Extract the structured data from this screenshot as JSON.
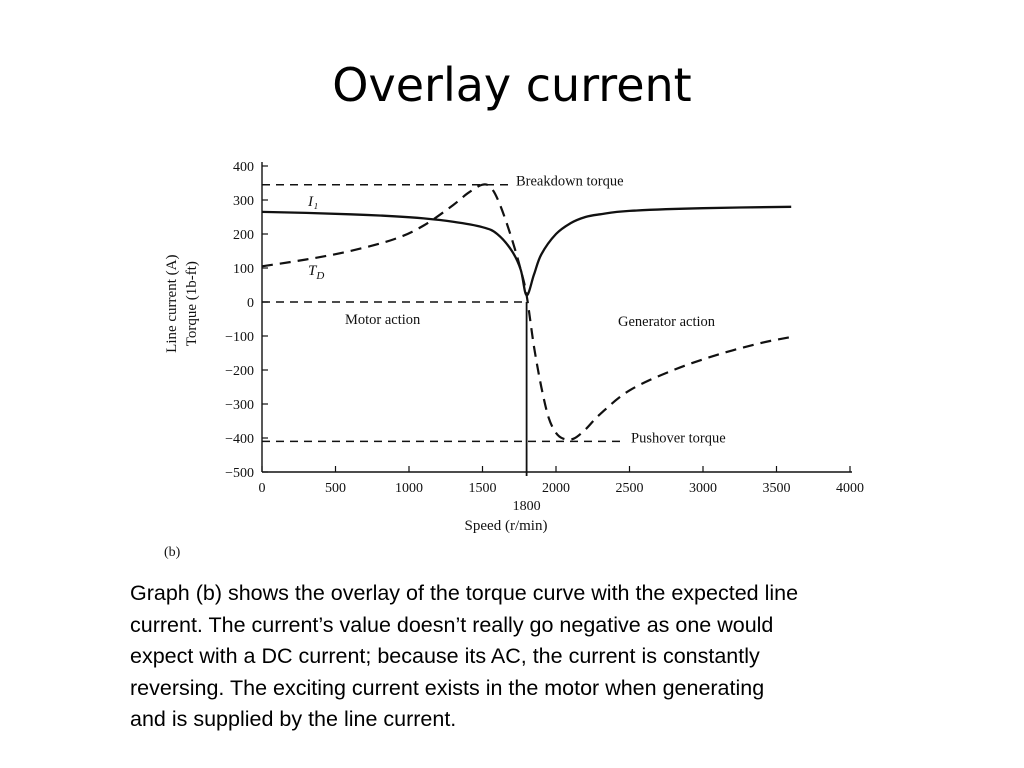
{
  "slide": {
    "title": "Overlay current",
    "caption_lines": [
      "Graph (b) shows the overlay of the torque curve with the expected line",
      "current.  The current’s value doesn’t really go negative as one would",
      "expect with a DC current; because its AC, the current is constantly",
      "reversing.  The exciting current exists in the motor when generating",
      "and is supplied by the line current."
    ]
  },
  "chart_data": {
    "type": "line",
    "panel_label": "(b)",
    "xlabel": "Speed (r/min)",
    "ylabel_lines": [
      "Line current (A)",
      "Torque (1b-ft)"
    ],
    "xlim": [
      0,
      4000
    ],
    "ylim": [
      -500,
      400
    ],
    "x_ticks": [
      0,
      500,
      1000,
      1500,
      2000,
      2500,
      3000,
      3500,
      4000
    ],
    "x_tick_labels": [
      "0",
      "500",
      "1000",
      "1500",
      "2000",
      "2500",
      "3000",
      "3500",
      "4000"
    ],
    "y_ticks": [
      400,
      300,
      200,
      100,
      0,
      -100,
      -200,
      -300,
      -400,
      -500
    ],
    "y_tick_labels": [
      "400",
      "300",
      "200",
      "100",
      "0",
      "−100",
      "−200",
      "−300",
      "−400",
      "−500"
    ],
    "sync_speed": {
      "x": 1800,
      "label": "1800"
    },
    "series": [
      {
        "name": "I₁",
        "style": "solid",
        "x": [
          0,
          300,
          600,
          900,
          1100,
          1300,
          1500,
          1600,
          1700,
          1760,
          1800,
          1850,
          1900,
          2000,
          2100,
          2200,
          2300,
          2500,
          3000,
          3600
        ],
        "y": [
          265,
          262,
          258,
          252,
          246,
          236,
          220,
          200,
          150,
          95,
          20,
          80,
          140,
          200,
          232,
          250,
          258,
          268,
          276,
          280
        ]
      },
      {
        "name": "T",
        "name_subscript": "D",
        "style": "dashed",
        "x": [
          0,
          300,
          600,
          900,
          1100,
          1300,
          1400,
          1500,
          1560,
          1620,
          1700,
          1760,
          1800,
          1850,
          1900,
          1950,
          2000,
          2050,
          2120,
          2200,
          2300,
          2500,
          2800,
          3100,
          3400,
          3600
        ],
        "y": [
          105,
          125,
          150,
          185,
          225,
          285,
          320,
          345,
          335,
          285,
          185,
          95,
          20,
          -130,
          -250,
          -340,
          -385,
          -402,
          -402,
          -375,
          -330,
          -260,
          -200,
          -155,
          -120,
          -103
        ]
      }
    ],
    "reference_lines": [
      {
        "label": "Breakdown torque",
        "y": 345,
        "style": "dashed"
      },
      {
        "label": "Pushover torque",
        "y": -410,
        "style": "dashed"
      },
      {
        "label": "",
        "y": 0,
        "style": "dashed",
        "x_to": 1800
      }
    ],
    "region_labels": [
      {
        "text": "Motor action"
      },
      {
        "text": "Generator action"
      }
    ]
  }
}
